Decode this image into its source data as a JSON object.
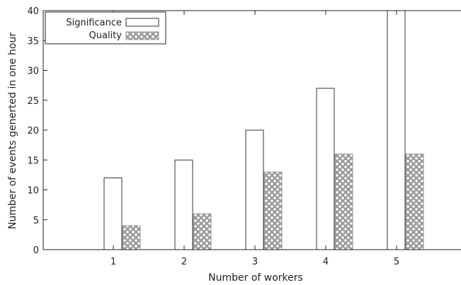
{
  "chart_data": {
    "type": "bar",
    "categories": [
      "1",
      "2",
      "3",
      "4",
      "5"
    ],
    "series": [
      {
        "name": "Significance",
        "values": [
          12,
          15,
          20,
          27,
          40
        ],
        "fill": "white"
      },
      {
        "name": "Quality",
        "values": [
          4,
          6,
          13,
          16,
          16
        ],
        "fill": "crosshatch"
      }
    ],
    "xlabel": "Number of workers",
    "ylabel": "Number of events generted in one hour",
    "ylim": [
      0,
      40
    ],
    "yticks": [
      "0",
      "5",
      "10",
      "15",
      "20",
      "25",
      "30",
      "35",
      "40"
    ],
    "legend_position": "top-left",
    "grid": false,
    "colors": {
      "axis": "#222222",
      "bar_stroke": "#333333",
      "hatch": "#9a9a9a"
    }
  }
}
